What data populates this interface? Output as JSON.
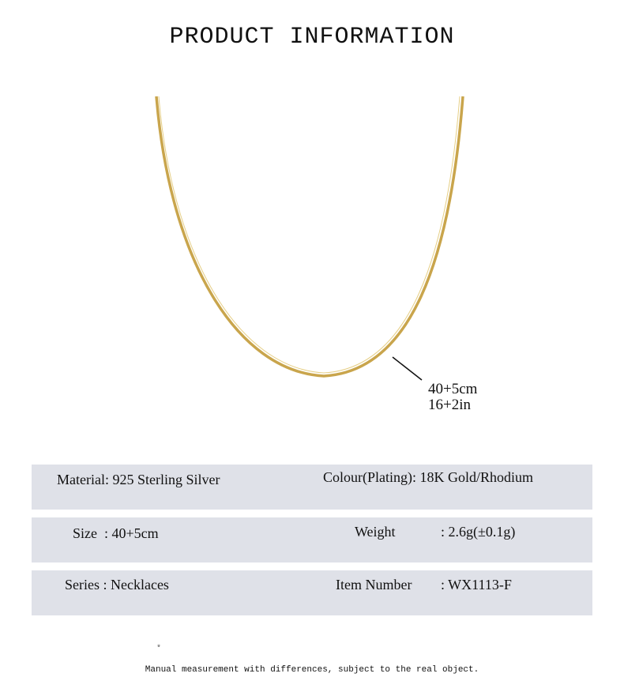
{
  "title": "PRODUCT INFORMATION",
  "colors": {
    "chain": "#c9a54c",
    "row_background": "#dfe1e8"
  },
  "measurement": {
    "cm": "40+5cm",
    "inch": "16+2in"
  },
  "specs": [
    {
      "left": "Material: 925 Sterling Silver",
      "right": "Colour(Plating): 18K Gold/Rhodium"
    },
    {
      "left": "Size  : 40+5cm",
      "right_label": "Weight",
      "right": ": 2.6g(±0.1g)"
    },
    {
      "left": "Series : Necklaces",
      "right_label": "Item Number",
      "right": ": WX1113-F"
    }
  ],
  "note_mark": "*",
  "note": "Manual measurement with differences, subject to the real object."
}
